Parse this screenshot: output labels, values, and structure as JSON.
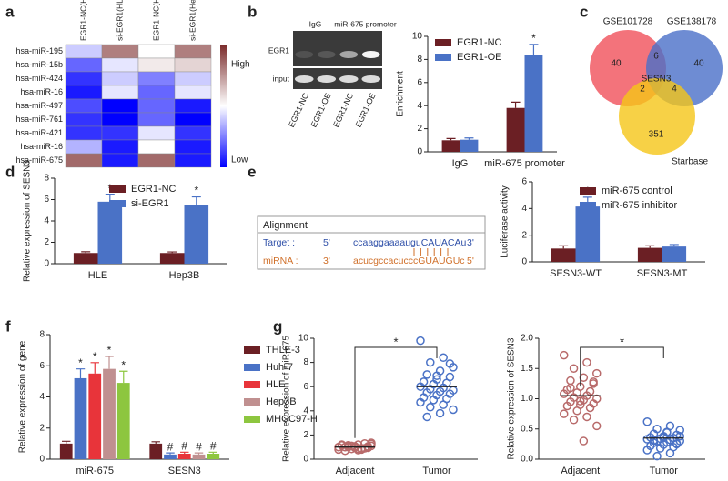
{
  "chart_data": [
    {
      "type": "heatmap",
      "panel": "a",
      "columns": [
        "EGR1-NC(HLE)",
        "si-EGR1(HLE)",
        "EGR1-NC(Hep3B)",
        "si-EGR1(Hep3B)"
      ],
      "rows": [
        "hsa-miR-195",
        "hsa-miR-15b",
        "hsa-miR-424",
        "hsa-miR-16",
        "hsa-miR-497",
        "hsa-miR-761",
        "hsa-miR-421",
        "hsa-miR-16",
        "hsa-miR-675"
      ],
      "values": [
        [
          0.4,
          0.8,
          0.5,
          0.8
        ],
        [
          0.2,
          0.45,
          0.55,
          0.6
        ],
        [
          0.1,
          0.4,
          0.25,
          0.4
        ],
        [
          0.05,
          0.45,
          0.2,
          0.45
        ],
        [
          0.15,
          0,
          0.2,
          0.05
        ],
        [
          0.1,
          0,
          0.2,
          0
        ],
        [
          0.1,
          0.1,
          0.45,
          0.1
        ],
        [
          0.35,
          0.05,
          0.5,
          0.05
        ],
        [
          0.85,
          0.05,
          0.85,
          0.05
        ]
      ],
      "clim": [
        0,
        1
      ],
      "colors": [
        "#0000ff",
        "#ffffff",
        "#7a2a2a"
      ],
      "colorbar_labels": [
        "High",
        "Low"
      ]
    },
    {
      "type": "blot",
      "panel": "b",
      "column_headers": [
        "IgG",
        "miR-675 promoter"
      ],
      "row_labels": [
        "EGR1",
        "input"
      ],
      "lanes": [
        "EGR1-NC",
        "EGR1-OE",
        "EGR1-NC",
        "EGR1-OE"
      ]
    },
    {
      "type": "bar",
      "categories": [
        "IgG",
        "miR-675 promoter"
      ],
      "ylabel": "Enrichment",
      "ylim": [
        0,
        10
      ],
      "yticks": [
        0,
        2,
        4,
        6,
        8,
        10
      ],
      "series": [
        {
          "name": "EGR1-NC",
          "color": "#6b1f24",
          "values": [
            1.0,
            3.8
          ],
          "errors": [
            0.15,
            0.5
          ],
          "sig": [
            null,
            null
          ]
        },
        {
          "name": "EGR1-OE",
          "color": "#4a72c6",
          "values": [
            1.05,
            8.4
          ],
          "errors": [
            0.15,
            0.9
          ],
          "sig": [
            null,
            "*"
          ]
        }
      ]
    },
    {
      "type": "venn",
      "panel": "c",
      "sets": [
        {
          "name": "GSE101728",
          "color": "#f0505a"
        },
        {
          "name": "GSE138178",
          "color": "#4a6fc8"
        },
        {
          "name": "Starbase",
          "color": "#f5c518"
        }
      ],
      "regions": [
        40,
        6,
        40,
        2,
        4,
        351
      ],
      "center_label": "SESN3"
    },
    {
      "type": "bar",
      "panel": "d",
      "categories": [
        "HLE",
        "Hep3B"
      ],
      "ylabel": "Relative expression of SESN3",
      "ylim": [
        0,
        8
      ],
      "yticks": [
        0,
        2,
        4,
        6,
        8
      ],
      "series": [
        {
          "name": "EGR1-NC",
          "color": "#6b1f24",
          "values": [
            1.0,
            1.0
          ],
          "errors": [
            0.12,
            0.1
          ],
          "sig": [
            null,
            null
          ]
        },
        {
          "name": "si-EGR1",
          "color": "#4a72c6",
          "values": [
            5.8,
            5.5
          ],
          "errors": [
            0.7,
            0.75
          ],
          "sig": [
            "*",
            "*"
          ]
        }
      ]
    },
    {
      "type": "alignment",
      "panel": "e",
      "title": "Alignment",
      "rows": [
        {
          "label": "Target :",
          "left": "5'",
          "sequence": "ccaaggaaaauguCAUACAu",
          "right": "3'",
          "color": "#2e4fa8"
        },
        {
          "label": "miRNA :",
          "left": "3'",
          "sequence": "acucgccacucccGUAUGUc",
          "right": "5'",
          "color": "#d0702a"
        }
      ]
    },
    {
      "type": "bar",
      "categories": [
        "SESN3-WT",
        "SESN3-MT"
      ],
      "ylabel": "Luciferase activity",
      "ylim": [
        0,
        6
      ],
      "yticks": [
        0,
        2,
        4,
        6
      ],
      "series": [
        {
          "name": "miR-675 control",
          "color": "#6b1f24",
          "values": [
            1.0,
            1.05
          ],
          "errors": [
            0.2,
            0.15
          ],
          "sig": [
            null,
            null
          ]
        },
        {
          "name": "miR-675 inhibitor",
          "color": "#4a72c6",
          "values": [
            4.15,
            1.15
          ],
          "errors": [
            0.7,
            0.15
          ],
          "sig": [
            "*",
            null
          ]
        }
      ]
    },
    {
      "type": "bar",
      "panel": "f",
      "categories": [
        "miR-675",
        "SESN3"
      ],
      "ylabel": "Relative expression of gene",
      "ylim": [
        0,
        8
      ],
      "yticks": [
        0,
        2,
        4,
        6,
        8
      ],
      "series": [
        {
          "name": "THLE-3",
          "color": "#6b1f24",
          "values": [
            1.0,
            1.0
          ],
          "errors": [
            0.15,
            0.12
          ],
          "sig": [
            null,
            null
          ]
        },
        {
          "name": "Huh-7",
          "color": "#4a72c6",
          "values": [
            5.2,
            0.3
          ],
          "errors": [
            0.6,
            0.1
          ],
          "sig": [
            "*",
            "#"
          ]
        },
        {
          "name": "HLE",
          "color": "#e8343a",
          "values": [
            5.5,
            0.35
          ],
          "errors": [
            0.7,
            0.1
          ],
          "sig": [
            "*",
            "#"
          ]
        },
        {
          "name": "Hep3B",
          "color": "#c09090",
          "values": [
            5.8,
            0.3
          ],
          "errors": [
            0.8,
            0.1
          ],
          "sig": [
            "*",
            "#"
          ]
        },
        {
          "name": "MHCC97-H",
          "color": "#8dc63f",
          "values": [
            4.9,
            0.35
          ],
          "errors": [
            0.75,
            0.1
          ],
          "sig": [
            "*",
            "#"
          ]
        }
      ]
    },
    {
      "type": "strip",
      "panel": "g",
      "ylabel": "Relative expression of miR-675",
      "ylim": [
        0,
        10
      ],
      "yticks": [
        0,
        2,
        4,
        6,
        8,
        10
      ],
      "significance": "*",
      "groups": [
        {
          "name": "Adjacent",
          "color": "#b86a6a",
          "mean": 1.0,
          "values": [
            0.8,
            0.9,
            1.0,
            1.1,
            1.2,
            0.7,
            0.95,
            1.05,
            1.15,
            1.3,
            0.85,
            1.0,
            0.9,
            1.1,
            1.25,
            0.75,
            1.0,
            0.95,
            1.05,
            1.2,
            0.9,
            1.1,
            1.0,
            0.8,
            1.15,
            1.35,
            0.85,
            1.0,
            1.05,
            0.95
          ]
        },
        {
          "name": "Tumor",
          "color": "#4a72c6",
          "mean": 6.0,
          "values": [
            9.8,
            8.4,
            8.0,
            7.6,
            7.3,
            7.0,
            6.8,
            6.6,
            6.4,
            6.3,
            6.2,
            6.0,
            5.9,
            5.8,
            5.7,
            5.6,
            5.5,
            5.4,
            5.3,
            5.1,
            5.0,
            4.9,
            4.7,
            4.5,
            4.3,
            4.1,
            3.8,
            3.5,
            7.9,
            6.9
          ]
        }
      ]
    },
    {
      "type": "strip",
      "ylabel": "Relative expression of SESN3",
      "ylim": [
        0,
        2
      ],
      "yticks": [
        {
          "value": 0,
          "label": "0.0"
        },
        {
          "value": 0.5,
          "label": "0.5"
        },
        {
          "value": 1,
          "label": "1.0"
        },
        {
          "value": 1.5,
          "label": "1.5"
        },
        {
          "value": 2,
          "label": "2.0"
        }
      ],
      "significance": "*",
      "groups": [
        {
          "name": "Adjacent",
          "color": "#b86a6a",
          "mean": 1.05,
          "values": [
            1.72,
            1.6,
            1.5,
            1.42,
            1.35,
            1.3,
            1.25,
            1.2,
            1.15,
            1.12,
            1.1,
            1.08,
            1.05,
            1.02,
            1.0,
            0.98,
            0.95,
            0.92,
            0.9,
            0.88,
            0.85,
            0.8,
            0.75,
            0.7,
            0.65,
            0.55,
            0.3,
            1.18,
            1.28,
            0.96
          ]
        },
        {
          "name": "Tumor",
          "color": "#4a72c6",
          "mean": 0.35,
          "values": [
            0.62,
            0.55,
            0.5,
            0.48,
            0.45,
            0.42,
            0.4,
            0.38,
            0.36,
            0.35,
            0.34,
            0.33,
            0.32,
            0.3,
            0.3,
            0.28,
            0.27,
            0.25,
            0.24,
            0.22,
            0.2,
            0.18,
            0.15,
            0.1,
            0.05,
            0.38,
            0.44,
            0.31,
            0.26,
            0.36
          ]
        }
      ]
    }
  ]
}
